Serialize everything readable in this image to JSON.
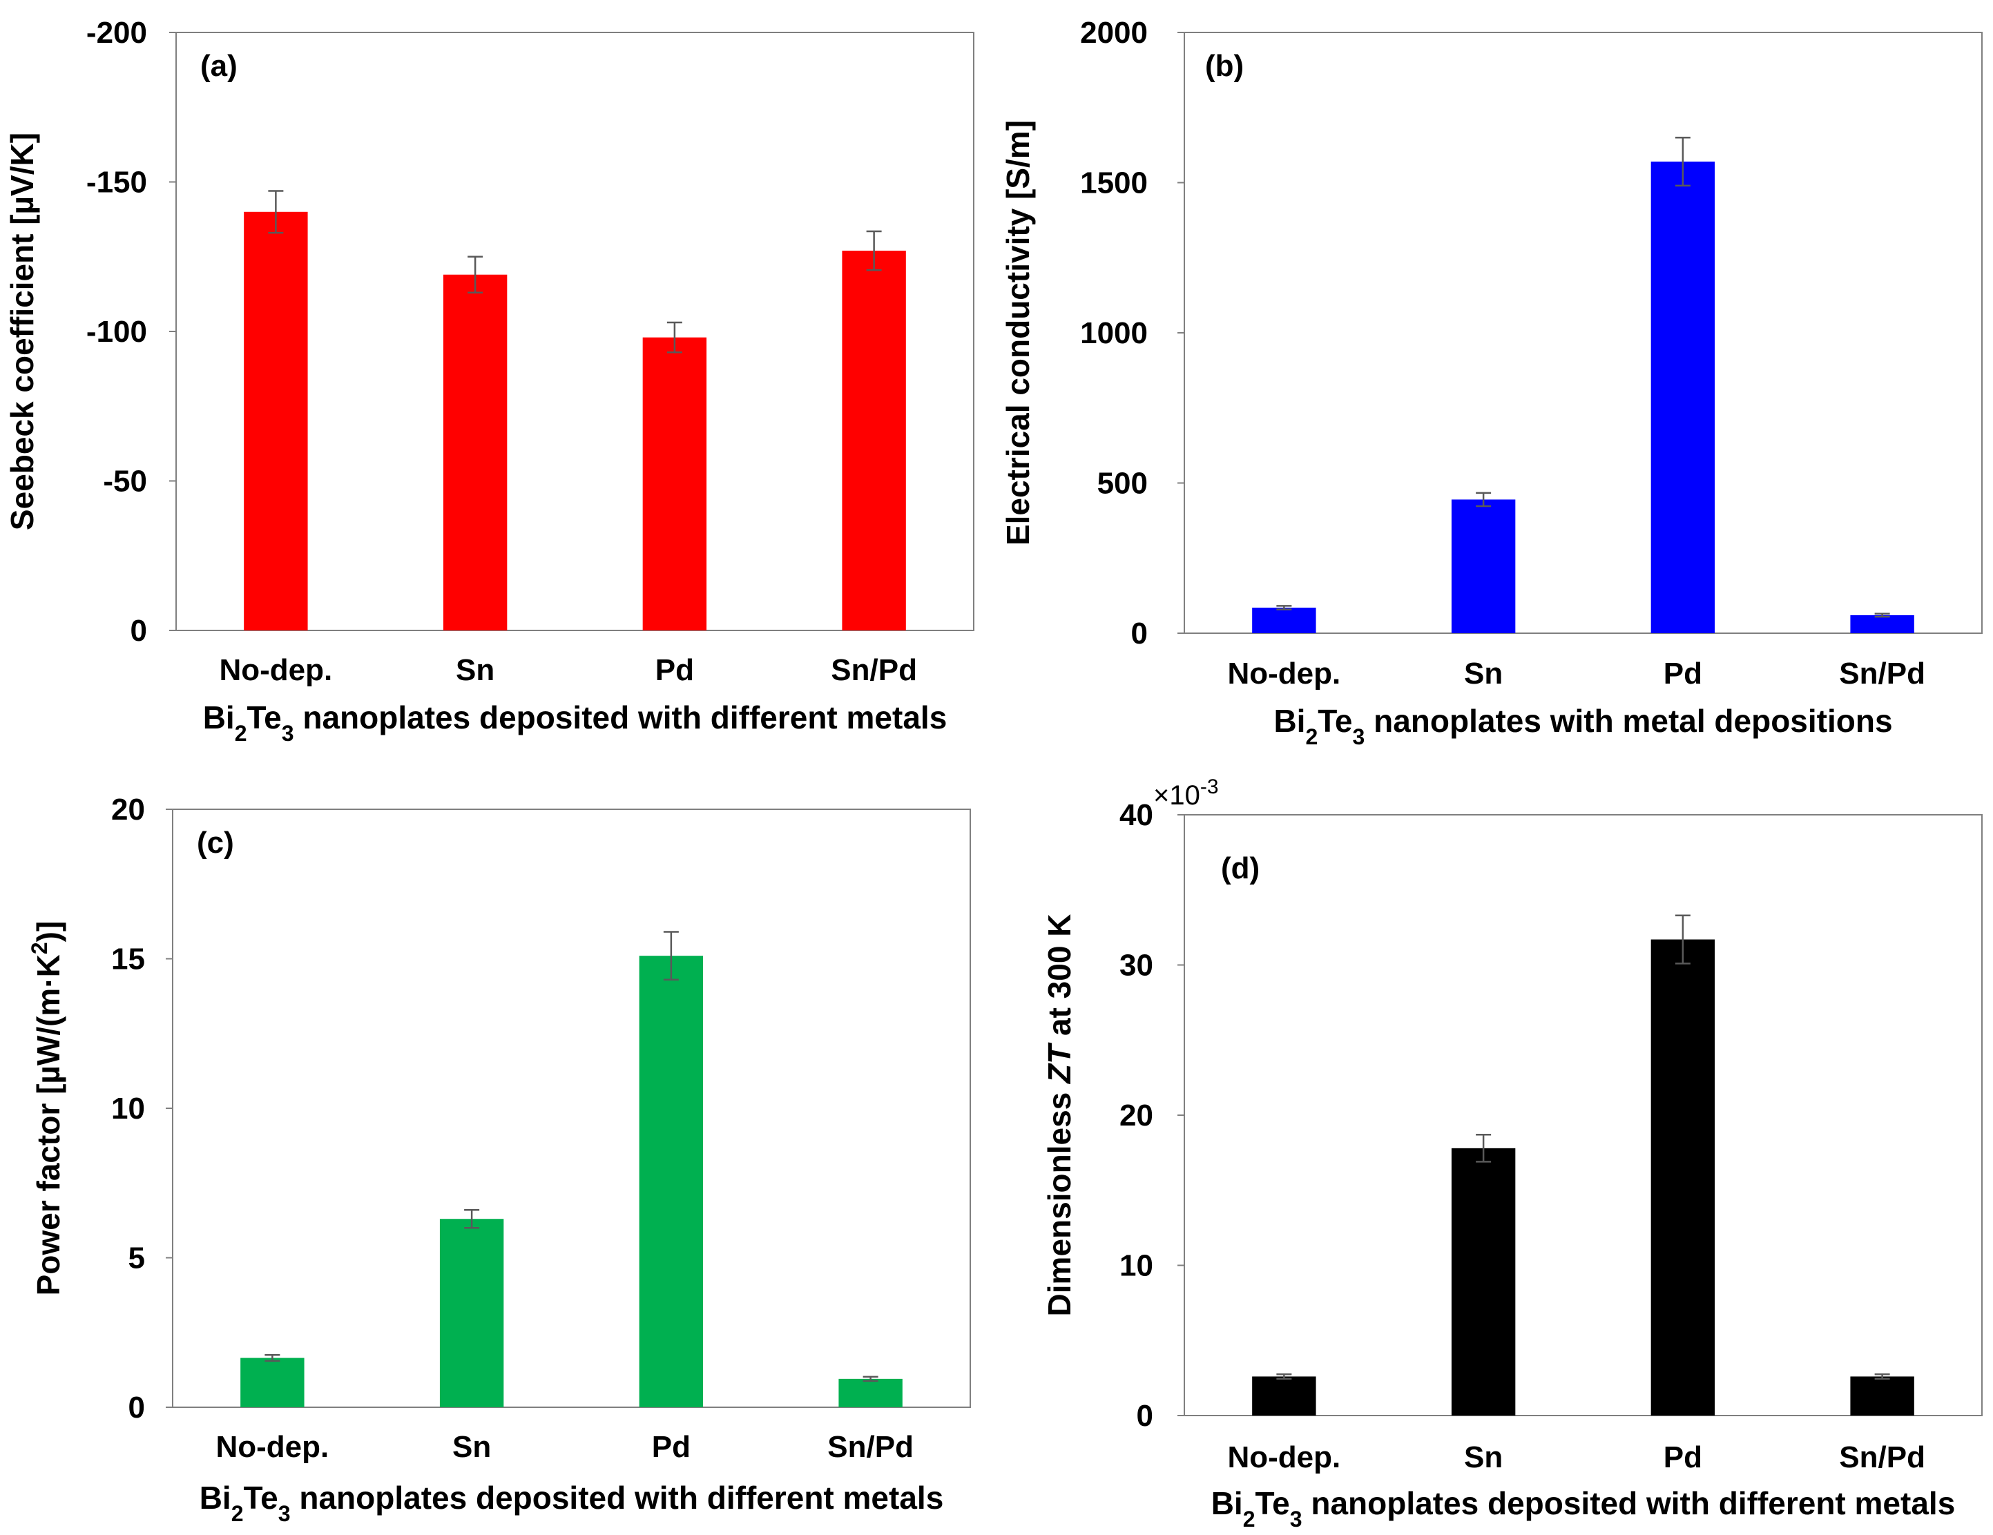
{
  "chart_data": [
    {
      "panel": "(a)",
      "type": "bar",
      "categories": [
        "No-dep.",
        "Sn",
        "Pd",
        "Sn/Pd"
      ],
      "values": [
        -140,
        -119,
        -98,
        -127
      ],
      "errors": [
        7,
        6,
        5,
        6.5
      ],
      "color": "#ff0000",
      "ylim": [
        0,
        -200
      ],
      "yticks": [
        0,
        -50,
        -100,
        -150,
        -200
      ],
      "ytick_labels": [
        "0",
        "-50",
        "-100",
        "-150",
        "-200"
      ],
      "ylabel": "Seebeck coefficient [µV/K]",
      "xlabel": {
        "pre": "Bi",
        "sub1": "2",
        "mid": "Te",
        "sub2": "3",
        "post": " nanoplates deposited with different metals"
      },
      "multiplier": null
    },
    {
      "panel": "(b)",
      "type": "bar",
      "categories": [
        "No-dep.",
        "Sn",
        "Pd",
        "Sn/Pd"
      ],
      "values": [
        85,
        445,
        1570,
        60
      ],
      "errors": [
        6,
        22,
        80,
        5
      ],
      "color": "#0000ff",
      "ylim": [
        0,
        2000
      ],
      "yticks": [
        0,
        500,
        1000,
        1500,
        2000
      ],
      "ytick_labels": [
        "0",
        "500",
        "1000",
        "1500",
        "2000"
      ],
      "ylabel": "Electrical conductivity [S/m]",
      "xlabel": {
        "pre": "Bi",
        "sub1": "2",
        "mid": "Te",
        "sub2": "3",
        "post": "  nanoplates with metal depositions"
      },
      "multiplier": null
    },
    {
      "panel": "(c)",
      "type": "bar",
      "categories": [
        "No-dep.",
        "Sn",
        "Pd",
        "Sn/Pd"
      ],
      "values": [
        1.65,
        6.3,
        15.1,
        0.95
      ],
      "errors": [
        0.1,
        0.3,
        0.8,
        0.07
      ],
      "color": "#00b050",
      "ylim": [
        0,
        20
      ],
      "yticks": [
        0,
        5,
        10,
        15,
        20
      ],
      "ytick_labels": [
        "0",
        "5",
        "10",
        "15",
        "20"
      ],
      "ylabel": {
        "pre": "Power factor [µW/(m·K",
        "sup": "2",
        "post": ")]"
      },
      "xlabel": {
        "pre": "Bi",
        "sub1": "2",
        "mid": "Te",
        "sub2": "3",
        "post": " nanoplates deposited with different metals"
      },
      "multiplier": null
    },
    {
      "panel": "(d)",
      "type": "bar",
      "categories": [
        "No-dep.",
        "Sn",
        "Pd",
        "Sn/Pd"
      ],
      "values": [
        2.6,
        17.8,
        31.7,
        2.6
      ],
      "errors": [
        0.15,
        0.9,
        1.6,
        0.15
      ],
      "color": "#000000",
      "ylim": [
        0,
        40
      ],
      "yticks": [
        0,
        10,
        20,
        30,
        40
      ],
      "ytick_labels": [
        "0",
        "10",
        "20",
        "30",
        "40"
      ],
      "ylabel": {
        "pre": "Dimensionless ",
        "italic": "ZT",
        "post": " at 300 K"
      },
      "xlabel": {
        "pre": "Bi",
        "sub1": "2",
        "mid": "Te",
        "sub2": "3",
        "post": " nanoplates deposited with different metals"
      },
      "multiplier": {
        "base": "×10",
        "exp": "-3"
      }
    }
  ]
}
